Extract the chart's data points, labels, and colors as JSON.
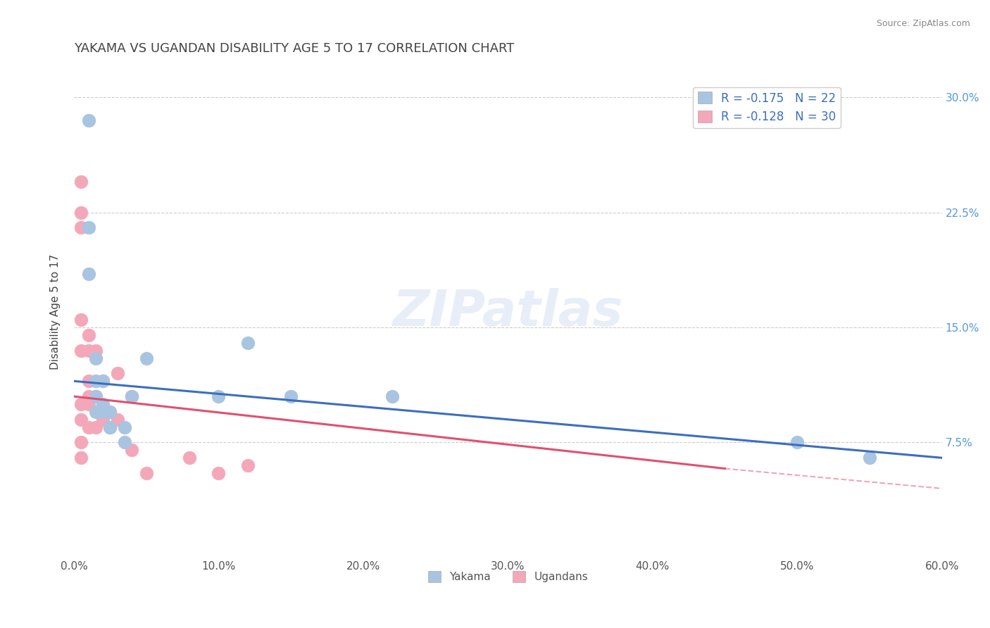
{
  "title": "YAKAMA VS UGANDAN DISABILITY AGE 5 TO 17 CORRELATION CHART",
  "source_text": "Source: ZipAtlas.com",
  "xlabel": "",
  "ylabel": "Disability Age 5 to 17",
  "watermark": "ZIPatlas",
  "xlim": [
    0.0,
    0.6
  ],
  "ylim": [
    0.0,
    0.32
  ],
  "xtick_labels": [
    "0.0%",
    "10.0%",
    "20.0%",
    "30.0%",
    "40.0%",
    "50.0%",
    "60.0%"
  ],
  "xtick_vals": [
    0.0,
    0.1,
    0.2,
    0.3,
    0.4,
    0.5,
    0.6
  ],
  "ytick_labels": [
    "7.5%",
    "15.0%",
    "22.5%",
    "30.0%"
  ],
  "ytick_vals": [
    0.075,
    0.15,
    0.225,
    0.3
  ],
  "legend_labels": [
    "R = -0.175   N = 22",
    "R = -0.128   N = 30"
  ],
  "yakama_color": "#a8c4e0",
  "ugandan_color": "#f4a7b9",
  "line_yakama_color": "#3c6ebf",
  "line_ugandan_color": "#e05070",
  "background_color": "#ffffff",
  "grid_color": "#cccccc",
  "title_color": "#444444",
  "label_color": "#444444",
  "right_tick_color": "#5599dd",
  "yakama_R": -0.175,
  "yakama_N": 22,
  "ugandan_R": -0.128,
  "ugandan_N": 30,
  "yakama_points_x": [
    0.01,
    0.01,
    0.01,
    0.015,
    0.015,
    0.015,
    0.015,
    0.02,
    0.02,
    0.02,
    0.025,
    0.025,
    0.035,
    0.035,
    0.04,
    0.05,
    0.1,
    0.12,
    0.15,
    0.22,
    0.5,
    0.55
  ],
  "yakama_points_y": [
    0.285,
    0.215,
    0.185,
    0.13,
    0.115,
    0.105,
    0.095,
    0.115,
    0.1,
    0.095,
    0.095,
    0.085,
    0.085,
    0.075,
    0.105,
    0.13,
    0.105,
    0.14,
    0.105,
    0.105,
    0.075,
    0.065
  ],
  "ugandan_points_x": [
    0.005,
    0.005,
    0.005,
    0.005,
    0.005,
    0.005,
    0.005,
    0.005,
    0.005,
    0.01,
    0.01,
    0.01,
    0.01,
    0.01,
    0.01,
    0.015,
    0.015,
    0.015,
    0.02,
    0.02,
    0.025,
    0.025,
    0.03,
    0.03,
    0.04,
    0.04,
    0.05,
    0.08,
    0.1,
    0.12
  ],
  "ugandan_points_y": [
    0.245,
    0.225,
    0.215,
    0.155,
    0.135,
    0.1,
    0.09,
    0.075,
    0.065,
    0.145,
    0.135,
    0.115,
    0.105,
    0.1,
    0.085,
    0.135,
    0.105,
    0.085,
    0.115,
    0.09,
    0.095,
    0.085,
    0.12,
    0.09,
    0.105,
    0.07,
    0.055,
    0.065,
    0.055,
    0.06
  ],
  "yakama_line_x": [
    0.0,
    0.6
  ],
  "yakama_line_y": [
    0.115,
    0.065
  ],
  "ugandan_line_x": [
    0.0,
    0.45
  ],
  "ugandan_line_y": [
    0.105,
    0.058
  ]
}
